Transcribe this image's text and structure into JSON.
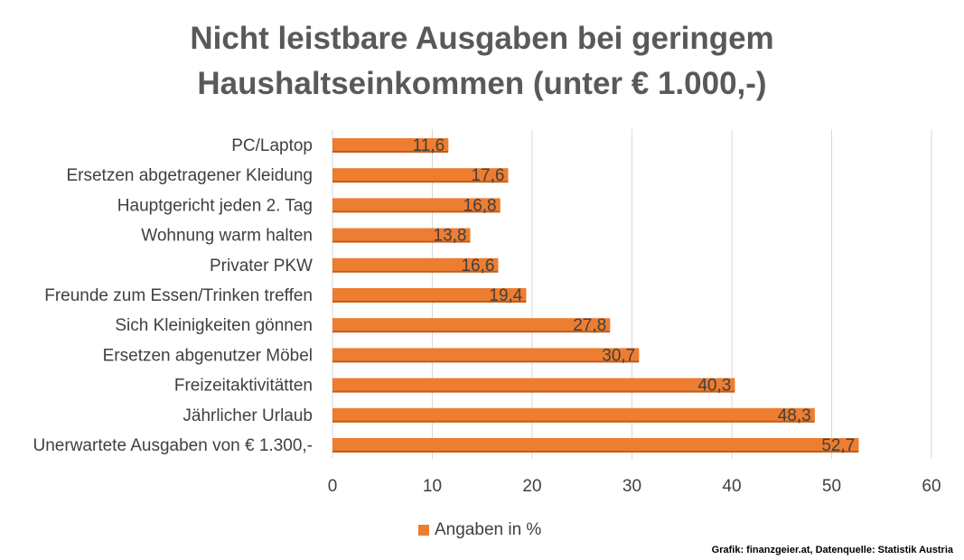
{
  "colors": {
    "bar": "#ED7D31",
    "bar_dark": "#C55A11",
    "grid": "#D9D9D9",
    "text": "#404040",
    "title": "#595959"
  },
  "chart_data": {
    "type": "bar",
    "orientation": "horizontal",
    "title": [
      "Nicht leistbare Ausgaben bei geringem",
      "Haushaltseinkommen (unter € 1.000,-)"
    ],
    "categories": [
      "PC/Laptop",
      "Ersetzen abgetragener Kleidung",
      "Hauptgericht jeden 2. Tag",
      "Wohnung warm halten",
      "Privater PKW",
      "Freunde zum Essen/Trinken treffen",
      "Sich Kleinigkeiten gönnen",
      "Ersetzen abgenutzer Möbel",
      "Freizeitaktivitätten",
      "Jährlicher Urlaub",
      "Unerwartete Ausgaben von € 1.300,-"
    ],
    "series": [
      {
        "name": "Angaben in %",
        "values": [
          11.6,
          17.6,
          16.8,
          13.8,
          16.6,
          19.4,
          27.8,
          30.7,
          40.3,
          48.3,
          52.7
        ],
        "labels": [
          "11,6",
          "17,6",
          "16,8",
          "13,8",
          "16,6",
          "19,4",
          "27,8",
          "30,7",
          "40,3",
          "48,3",
          "52,7"
        ]
      }
    ],
    "xlim": [
      0,
      60
    ],
    "xticks": [
      0,
      10,
      20,
      30,
      40,
      50,
      60
    ],
    "grid": true,
    "legend": "bottom"
  },
  "source": "Grafik: finanzgeier.at, Datenquelle: Statistik Austria"
}
